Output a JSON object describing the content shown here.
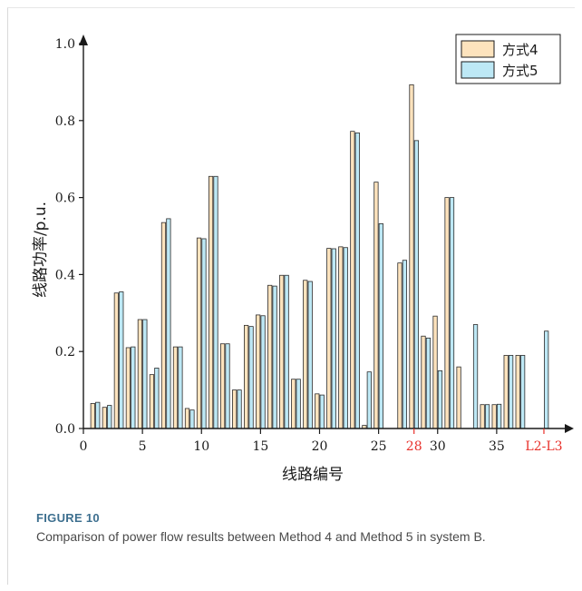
{
  "figure": {
    "label": "FIGURE 10",
    "caption": "Comparison of power flow results between Method 4 and Method 5 in system B."
  },
  "colors": {
    "series_a": "#fde3bd",
    "series_b": "#bde8f5",
    "highlight_tick": "#e8302a",
    "axis": "#1a1a1a"
  },
  "chart_data": {
    "type": "bar",
    "xlabel": "线路编号",
    "ylabel": "线路功率/p.u.",
    "ylim": [
      0,
      1.0
    ],
    "xlim": [
      0,
      40
    ],
    "yticks": [
      "0.0",
      "0.2",
      "0.4",
      "0.6",
      "0.8",
      "1.0"
    ],
    "xticks": [
      {
        "x": 0,
        "label": "0",
        "highlight": false
      },
      {
        "x": 5,
        "label": "5",
        "highlight": false
      },
      {
        "x": 10,
        "label": "10",
        "highlight": false
      },
      {
        "x": 15,
        "label": "15",
        "highlight": false
      },
      {
        "x": 20,
        "label": "20",
        "highlight": false
      },
      {
        "x": 25,
        "label": "25",
        "highlight": false
      },
      {
        "x": 28,
        "label": "28",
        "highlight": true
      },
      {
        "x": 30,
        "label": "30",
        "highlight": false
      },
      {
        "x": 35,
        "label": "35",
        "highlight": false
      },
      {
        "x": 39,
        "label": "L2-L3",
        "highlight": true
      }
    ],
    "legend_position": "top-right",
    "categories": [
      1,
      2,
      3,
      4,
      5,
      6,
      7,
      8,
      9,
      10,
      11,
      12,
      13,
      14,
      15,
      16,
      17,
      18,
      19,
      20,
      21,
      22,
      23,
      24,
      25,
      26,
      27,
      28,
      29,
      30,
      31,
      32,
      33,
      34,
      35,
      36,
      37,
      38,
      39
    ],
    "series": [
      {
        "name": "方式4",
        "values": [
          0.065,
          0.055,
          0.352,
          0.21,
          0.283,
          0.14,
          0.535,
          0.212,
          0.052,
          0.495,
          0.655,
          0.22,
          0.1,
          0.268,
          0.295,
          0.372,
          0.398,
          0.128,
          0.385,
          0.09,
          0.468,
          0.472,
          0.772,
          0.008,
          0.64,
          0,
          0.43,
          0.893,
          0.24,
          0.292,
          0.6,
          0.16,
          0,
          0.062,
          0.062,
          0.19,
          0.19,
          0,
          0
        ]
      },
      {
        "name": "方式5",
        "values": [
          0.068,
          0.06,
          0.355,
          0.212,
          0.283,
          0.157,
          0.545,
          0.212,
          0.048,
          0.493,
          0.655,
          0.22,
          0.1,
          0.265,
          0.293,
          0.37,
          0.398,
          0.128,
          0.382,
          0.087,
          0.467,
          0.47,
          0.768,
          0.147,
          0.532,
          0,
          0.437,
          0.748,
          0.235,
          0.15,
          0.6,
          0,
          0.27,
          0.062,
          0.063,
          0.19,
          0.19,
          0,
          0.253
        ]
      }
    ]
  }
}
